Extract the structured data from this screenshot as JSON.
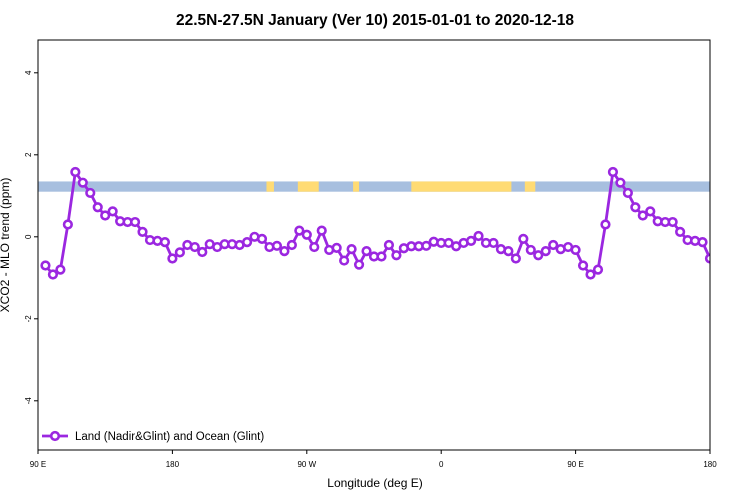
{
  "chart_data": {
    "type": "line",
    "title": "22.5N-27.5N January (Ver 10)   2015-01-01 to 2020-12-18",
    "xlabel": "Longitude (deg E)",
    "ylabel": "XCO2 - MLO trend (ppm)",
    "xlim": [
      90,
      540
    ],
    "ylim": [
      -5.2,
      4.8
    ],
    "x_ticks": [
      {
        "value": 90,
        "label": "90 E"
      },
      {
        "value": 180,
        "label": "180"
      },
      {
        "value": 270,
        "label": "90 W"
      },
      {
        "value": 360,
        "label": "0"
      },
      {
        "value": 450,
        "label": "90 E"
      },
      {
        "value": 540,
        "label": "180"
      }
    ],
    "y_ticks": [
      {
        "value": 4,
        "label": "4"
      },
      {
        "value": 2,
        "label": "2"
      },
      {
        "value": 0,
        "label": "0"
      },
      {
        "value": -2,
        "label": "-2"
      },
      {
        "value": -4,
        "label": "-4"
      }
    ],
    "grid": false,
    "legend_position": "bottom-left",
    "land_ocean_band": {
      "y_range": [
        1.1,
        1.35
      ],
      "ocean_color": "#a7bfdf",
      "land_color": "#ffdb74",
      "land_segments": [
        [
          243,
          248
        ],
        [
          264,
          278
        ],
        [
          301,
          305
        ],
        [
          340,
          407
        ],
        [
          416,
          423
        ]
      ]
    },
    "series": [
      {
        "name": "Land (Nadir&Glint) and Ocean (Glint)",
        "color": "#9b27e0",
        "x": [
          95,
          100,
          105,
          110,
          115,
          120,
          125,
          130,
          135,
          140,
          145,
          150,
          155,
          160,
          165,
          170,
          175,
          180,
          185,
          190,
          195,
          200,
          205,
          210,
          215,
          220,
          225,
          230,
          235,
          240,
          245,
          250,
          255,
          260,
          265,
          270,
          275,
          280,
          285,
          290,
          295,
          300,
          305,
          310,
          315,
          320,
          325,
          330,
          335,
          340,
          345,
          350,
          355,
          360,
          365,
          370,
          375,
          380,
          385,
          390,
          395,
          400,
          405,
          410,
          415,
          420,
          425,
          430,
          435,
          440,
          445,
          450,
          455,
          460,
          465,
          470,
          475,
          480,
          485,
          490,
          495,
          500,
          505,
          510,
          515,
          520,
          525,
          530,
          535,
          540
        ],
        "y": [
          -0.7,
          -0.92,
          -0.8,
          0.3,
          1.58,
          1.32,
          1.07,
          0.72,
          0.52,
          0.62,
          0.38,
          0.36,
          0.36,
          0.12,
          -0.08,
          -0.1,
          -0.13,
          -0.53,
          -0.38,
          -0.2,
          -0.25,
          -0.37,
          -0.18,
          -0.25,
          -0.18,
          -0.18,
          -0.2,
          -0.13,
          0.0,
          -0.05,
          -0.25,
          -0.22,
          -0.35,
          -0.2,
          0.15,
          0.05,
          -0.25,
          0.15,
          -0.32,
          -0.27,
          -0.58,
          -0.3,
          -0.68,
          -0.35,
          -0.48,
          -0.48,
          -0.2,
          -0.45,
          -0.28,
          -0.23,
          -0.23,
          -0.22,
          -0.12,
          -0.15,
          -0.15,
          -0.23,
          -0.15,
          -0.1,
          0.02,
          -0.15,
          -0.15,
          -0.3,
          -0.35,
          -0.53,
          -0.05,
          -0.32,
          -0.45,
          -0.35,
          -0.2,
          -0.3,
          -0.25,
          -0.32,
          -0.7,
          -0.92,
          -0.8,
          0.3,
          1.58,
          1.32,
          1.07,
          0.72,
          0.52,
          0.62,
          0.38,
          0.36,
          0.36,
          0.12,
          -0.08,
          -0.1,
          -0.13,
          -0.53
        ]
      }
    ]
  }
}
